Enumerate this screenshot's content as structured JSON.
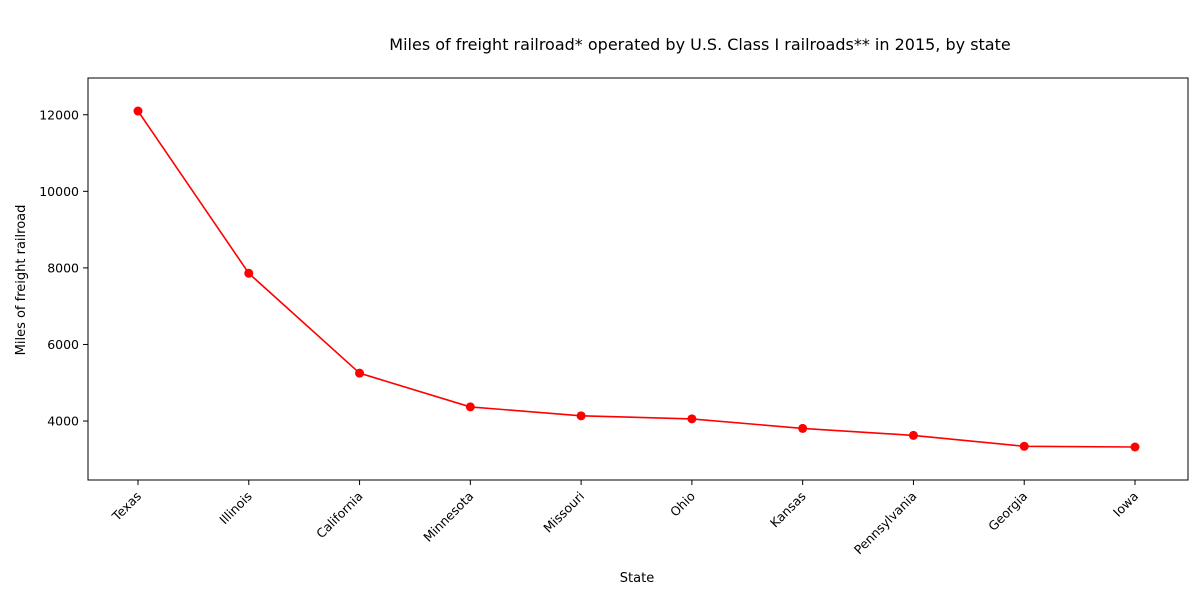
{
  "chart_data": {
    "type": "line",
    "title": "Miles of freight railroad* operated by U.S. Class I railroads** in 2015, by state",
    "xlabel": "State",
    "ylabel": "Miles of freight railroad",
    "categories": [
      "Texas",
      "Illinois",
      "California",
      "Minnesota",
      "Missouri",
      "Ohio",
      "Kansas",
      "Pennsylvania",
      "Georgia",
      "Iowa"
    ],
    "series": [
      {
        "values": [
          12097,
          7859,
          5250,
          4370,
          4136,
          4057,
          3807,
          3624,
          3340,
          3322
        ],
        "color": "#ff0000"
      }
    ],
    "yticks": [
      4000,
      6000,
      8000,
      10000,
      12000
    ],
    "ylim": [
      2460,
      12960
    ],
    "grid": false,
    "legend": "none"
  }
}
